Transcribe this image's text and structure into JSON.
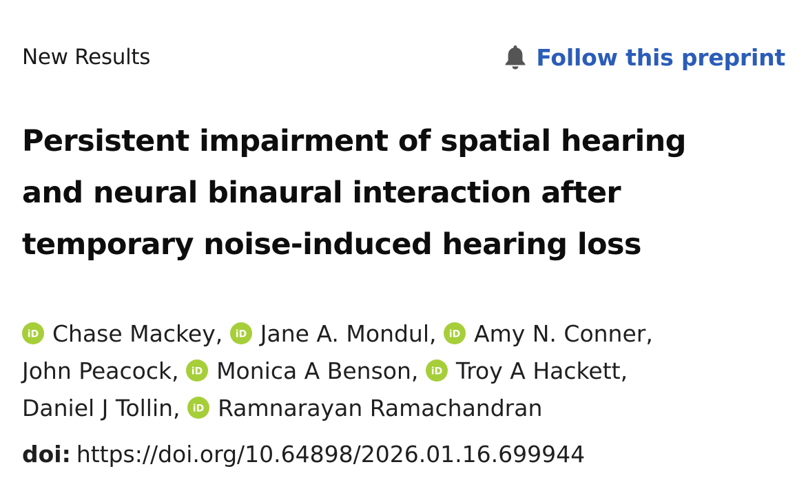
{
  "header": {
    "status_label": "New Results",
    "follow_label": "Follow this preprint",
    "bell_icon": "bell-icon",
    "follow_color": "#2b5cb8"
  },
  "article": {
    "title_lines": [
      "Persistent impairment of spatial hearing",
      "and neural binaural interaction after",
      "temporary noise-induced hearing loss"
    ],
    "orcid_icon": "orcid-icon",
    "orcid_color": "#a6ce39",
    "authors": [
      {
        "name": "Chase Mackey,",
        "orcid": true
      },
      {
        "name": "Jane A. Mondul,",
        "orcid": true
      },
      {
        "name": "Amy N. Conner,",
        "orcid": true
      },
      {
        "name": "John Peacock,",
        "orcid": false
      },
      {
        "name": "Monica A Benson,",
        "orcid": true
      },
      {
        "name": "Troy A Hackett,",
        "orcid": true
      },
      {
        "name": "Daniel J Tollin,",
        "orcid": false
      },
      {
        "name": "Ramnarayan Ramachandran",
        "orcid": true
      }
    ],
    "doi_label": "doi:",
    "doi_value": "https://doi.org/10.64898/2026.01.16.699944"
  }
}
